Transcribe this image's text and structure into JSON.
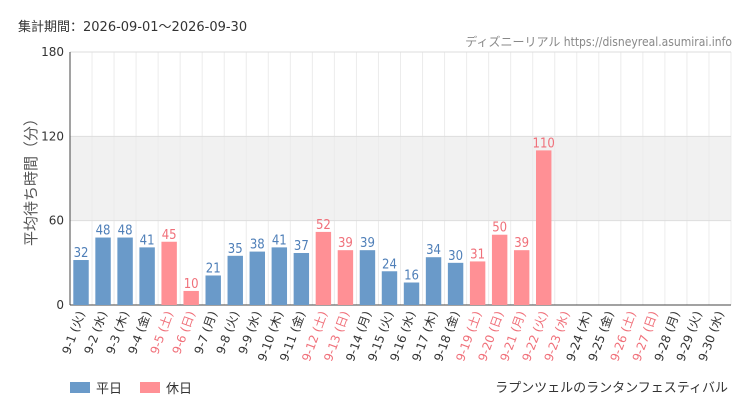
{
  "header": {
    "period_label": "集計期間：2026-09-01〜2026-09-30",
    "source": "ディズニーリアル https://disneyreal.asumirai.info"
  },
  "footer": {
    "title": "ラプンツェルのランタンフェスティバル"
  },
  "legend": {
    "weekday": "平日",
    "holiday": "休日"
  },
  "colors": {
    "weekday": "#6a9ac9",
    "holiday": "#ff9095",
    "weekday_label": "#4f7fb8",
    "holiday_label": "#f0707a",
    "band": "#f1f1f1",
    "grid": "#dddddd"
  },
  "chart_data": {
    "type": "bar",
    "ylabel": "平均待ち時間（分）",
    "ylim": [
      0,
      180
    ],
    "yticks": [
      0,
      60,
      120,
      180
    ],
    "categories": [
      "9-1 (火)",
      "9-2 (水)",
      "9-3 (木)",
      "9-4 (金)",
      "9-5 (土)",
      "9-6 (日)",
      "9-7 (月)",
      "9-8 (火)",
      "9-9 (水)",
      "9-10 (木)",
      "9-11 (金)",
      "9-12 (土)",
      "9-13 (日)",
      "9-14 (月)",
      "9-15 (火)",
      "9-16 (水)",
      "9-17 (木)",
      "9-18 (金)",
      "9-19 (土)",
      "9-20 (日)",
      "9-21 (月)",
      "9-22 (火)",
      "9-23 (水)",
      "9-24 (木)",
      "9-25 (金)",
      "9-26 (土)",
      "9-27 (日)",
      "9-28 (月)",
      "9-29 (火)",
      "9-30 (水)"
    ],
    "values": [
      32,
      48,
      48,
      41,
      45,
      10,
      21,
      35,
      38,
      41,
      37,
      52,
      39,
      39,
      24,
      16,
      34,
      30,
      31,
      50,
      39,
      110,
      null,
      null,
      null,
      null,
      null,
      null,
      null,
      null
    ],
    "holiday": [
      false,
      false,
      false,
      false,
      true,
      true,
      false,
      false,
      false,
      false,
      false,
      true,
      true,
      false,
      false,
      false,
      false,
      false,
      true,
      true,
      true,
      true,
      true,
      false,
      false,
      true,
      true,
      false,
      false,
      false
    ],
    "legend_position": "bottom-left"
  }
}
